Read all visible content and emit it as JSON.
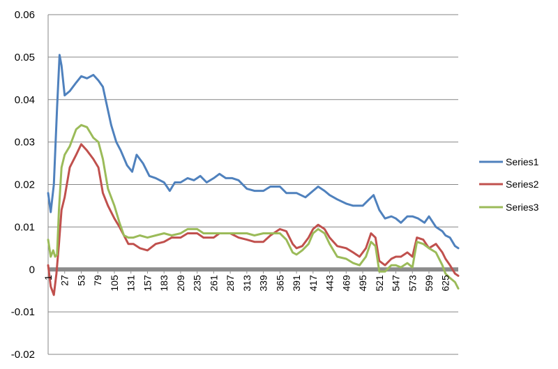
{
  "chart_data": {
    "type": "line",
    "title": "",
    "xlabel": "",
    "ylabel": "",
    "ylim": [
      -0.02,
      0.06
    ],
    "yticks": [
      "0.06",
      "0.05",
      "0.04",
      "0.03",
      "0.02",
      "0.01",
      "0",
      "-0.01",
      "-0.02"
    ],
    "ytick_values": [
      0.06,
      0.05,
      0.04,
      0.03,
      0.02,
      0.01,
      0,
      -0.01,
      -0.02
    ],
    "xlim": [
      1,
      645
    ],
    "xticks": [
      "1",
      "27",
      "53",
      "79",
      "105",
      "131",
      "157",
      "183",
      "209",
      "235",
      "261",
      "287",
      "313",
      "339",
      "365",
      "391",
      "417",
      "443",
      "469",
      "495",
      "521",
      "547",
      "573",
      "599",
      "625"
    ],
    "xtick_values": [
      1,
      27,
      53,
      79,
      105,
      131,
      157,
      183,
      209,
      235,
      261,
      287,
      313,
      339,
      365,
      391,
      417,
      443,
      469,
      495,
      521,
      547,
      573,
      599,
      625
    ],
    "grid": "horizontal",
    "legend_position": "right",
    "series": [
      {
        "name": "Series1",
        "color": "#4F81BD",
        "points": [
          [
            1,
            0.018
          ],
          [
            5,
            0.0135
          ],
          [
            10,
            0.02
          ],
          [
            15,
            0.038
          ],
          [
            19,
            0.0505
          ],
          [
            22,
            0.048
          ],
          [
            27,
            0.041
          ],
          [
            35,
            0.042
          ],
          [
            45,
            0.044
          ],
          [
            53,
            0.0455
          ],
          [
            62,
            0.045
          ],
          [
            72,
            0.0458
          ],
          [
            80,
            0.0445
          ],
          [
            87,
            0.043
          ],
          [
            92,
            0.0395
          ],
          [
            100,
            0.034
          ],
          [
            108,
            0.03
          ],
          [
            115,
            0.028
          ],
          [
            125,
            0.0245
          ],
          [
            133,
            0.023
          ],
          [
            140,
            0.027
          ],
          [
            150,
            0.025
          ],
          [
            160,
            0.022
          ],
          [
            170,
            0.0215
          ],
          [
            183,
            0.0205
          ],
          [
            192,
            0.0185
          ],
          [
            200,
            0.0205
          ],
          [
            209,
            0.0205
          ],
          [
            220,
            0.0215
          ],
          [
            230,
            0.021
          ],
          [
            240,
            0.022
          ],
          [
            250,
            0.0205
          ],
          [
            261,
            0.0215
          ],
          [
            270,
            0.0225
          ],
          [
            280,
            0.0215
          ],
          [
            290,
            0.0215
          ],
          [
            300,
            0.021
          ],
          [
            313,
            0.019
          ],
          [
            325,
            0.0185
          ],
          [
            339,
            0.0185
          ],
          [
            350,
            0.0195
          ],
          [
            365,
            0.0195
          ],
          [
            375,
            0.018
          ],
          [
            391,
            0.018
          ],
          [
            405,
            0.017
          ],
          [
            417,
            0.0185
          ],
          [
            425,
            0.0195
          ],
          [
            435,
            0.0185
          ],
          [
            443,
            0.0175
          ],
          [
            455,
            0.0165
          ],
          [
            469,
            0.0155
          ],
          [
            480,
            0.015
          ],
          [
            495,
            0.015
          ],
          [
            505,
            0.0165
          ],
          [
            512,
            0.0175
          ],
          [
            521,
            0.014
          ],
          [
            530,
            0.012
          ],
          [
            540,
            0.0125
          ],
          [
            547,
            0.012
          ],
          [
            555,
            0.011
          ],
          [
            565,
            0.0125
          ],
          [
            573,
            0.0125
          ],
          [
            582,
            0.012
          ],
          [
            592,
            0.011
          ],
          [
            599,
            0.0125
          ],
          [
            610,
            0.01
          ],
          [
            620,
            0.009
          ],
          [
            625,
            0.008
          ],
          [
            632,
            0.0075
          ],
          [
            640,
            0.0055
          ],
          [
            645,
            0.005
          ]
        ]
      },
      {
        "name": "Series2",
        "color": "#C0504D",
        "points": [
          [
            1,
            0.001
          ],
          [
            5,
            -0.004
          ],
          [
            10,
            -0.006
          ],
          [
            14,
            -0.001
          ],
          [
            18,
            0.006
          ],
          [
            22,
            0.014
          ],
          [
            27,
            0.017
          ],
          [
            35,
            0.024
          ],
          [
            45,
            0.027
          ],
          [
            53,
            0.0295
          ],
          [
            62,
            0.028
          ],
          [
            72,
            0.026
          ],
          [
            80,
            0.024
          ],
          [
            87,
            0.018
          ],
          [
            95,
            0.015
          ],
          [
            105,
            0.012
          ],
          [
            113,
            0.01
          ],
          [
            120,
            0.008
          ],
          [
            127,
            0.006
          ],
          [
            135,
            0.006
          ],
          [
            145,
            0.005
          ],
          [
            157,
            0.0045
          ],
          [
            170,
            0.006
          ],
          [
            183,
            0.0065
          ],
          [
            195,
            0.0075
          ],
          [
            209,
            0.0075
          ],
          [
            220,
            0.0085
          ],
          [
            235,
            0.0085
          ],
          [
            245,
            0.0075
          ],
          [
            261,
            0.0075
          ],
          [
            270,
            0.0085
          ],
          [
            287,
            0.0085
          ],
          [
            300,
            0.0075
          ],
          [
            313,
            0.007
          ],
          [
            325,
            0.0065
          ],
          [
            339,
            0.0065
          ],
          [
            350,
            0.008
          ],
          [
            365,
            0.0095
          ],
          [
            375,
            0.009
          ],
          [
            385,
            0.006
          ],
          [
            391,
            0.005
          ],
          [
            400,
            0.0055
          ],
          [
            410,
            0.0075
          ],
          [
            417,
            0.0095
          ],
          [
            425,
            0.0105
          ],
          [
            435,
            0.0095
          ],
          [
            443,
            0.0075
          ],
          [
            455,
            0.0055
          ],
          [
            469,
            0.005
          ],
          [
            480,
            0.004
          ],
          [
            490,
            0.003
          ],
          [
            500,
            0.005
          ],
          [
            508,
            0.0085
          ],
          [
            515,
            0.0075
          ],
          [
            521,
            0.002
          ],
          [
            530,
            0.001
          ],
          [
            540,
            0.0025
          ],
          [
            547,
            0.003
          ],
          [
            555,
            0.003
          ],
          [
            565,
            0.004
          ],
          [
            573,
            0.003
          ],
          [
            580,
            0.0075
          ],
          [
            590,
            0.007
          ],
          [
            599,
            0.005
          ],
          [
            610,
            0.006
          ],
          [
            620,
            0.004
          ],
          [
            625,
            0.0025
          ],
          [
            632,
            0.001
          ],
          [
            640,
            -0.001
          ],
          [
            645,
            -0.0015
          ]
        ]
      },
      {
        "name": "Series3",
        "color": "#9BBB59",
        "points": [
          [
            1,
            0.007
          ],
          [
            5,
            0.003
          ],
          [
            9,
            0.0045
          ],
          [
            12,
            0.003
          ],
          [
            15,
            0.0035
          ],
          [
            18,
            0.014
          ],
          [
            22,
            0.024
          ],
          [
            27,
            0.027
          ],
          [
            35,
            0.029
          ],
          [
            45,
            0.033
          ],
          [
            53,
            0.034
          ],
          [
            62,
            0.0335
          ],
          [
            72,
            0.031
          ],
          [
            80,
            0.03
          ],
          [
            87,
            0.026
          ],
          [
            95,
            0.019
          ],
          [
            105,
            0.015
          ],
          [
            113,
            0.011
          ],
          [
            120,
            0.008
          ],
          [
            127,
            0.0075
          ],
          [
            135,
            0.0075
          ],
          [
            145,
            0.008
          ],
          [
            157,
            0.0075
          ],
          [
            170,
            0.008
          ],
          [
            183,
            0.0085
          ],
          [
            195,
            0.008
          ],
          [
            209,
            0.0085
          ],
          [
            220,
            0.0095
          ],
          [
            235,
            0.0095
          ],
          [
            245,
            0.0085
          ],
          [
            261,
            0.0085
          ],
          [
            270,
            0.0085
          ],
          [
            287,
            0.0085
          ],
          [
            300,
            0.0085
          ],
          [
            313,
            0.0085
          ],
          [
            325,
            0.008
          ],
          [
            339,
            0.0085
          ],
          [
            350,
            0.0085
          ],
          [
            365,
            0.0085
          ],
          [
            375,
            0.007
          ],
          [
            385,
            0.004
          ],
          [
            391,
            0.0035
          ],
          [
            400,
            0.0045
          ],
          [
            410,
            0.006
          ],
          [
            417,
            0.0085
          ],
          [
            425,
            0.0095
          ],
          [
            435,
            0.0085
          ],
          [
            443,
            0.006
          ],
          [
            455,
            0.003
          ],
          [
            469,
            0.0025
          ],
          [
            480,
            0.0015
          ],
          [
            490,
            0.001
          ],
          [
            500,
            0.003
          ],
          [
            508,
            0.0065
          ],
          [
            515,
            0.0055
          ],
          [
            521,
            -0.0005
          ],
          [
            530,
            -0.0005
          ],
          [
            540,
            0.001
          ],
          [
            547,
            0.001
          ],
          [
            555,
            0.0005
          ],
          [
            565,
            0.0015
          ],
          [
            573,
            0.0005
          ],
          [
            580,
            0.0065
          ],
          [
            590,
            0.006
          ],
          [
            599,
            0.005
          ],
          [
            610,
            0.004
          ],
          [
            620,
            0.001
          ],
          [
            625,
            -0.001
          ],
          [
            632,
            -0.002
          ],
          [
            640,
            -0.003
          ],
          [
            645,
            -0.0045
          ]
        ]
      }
    ]
  }
}
